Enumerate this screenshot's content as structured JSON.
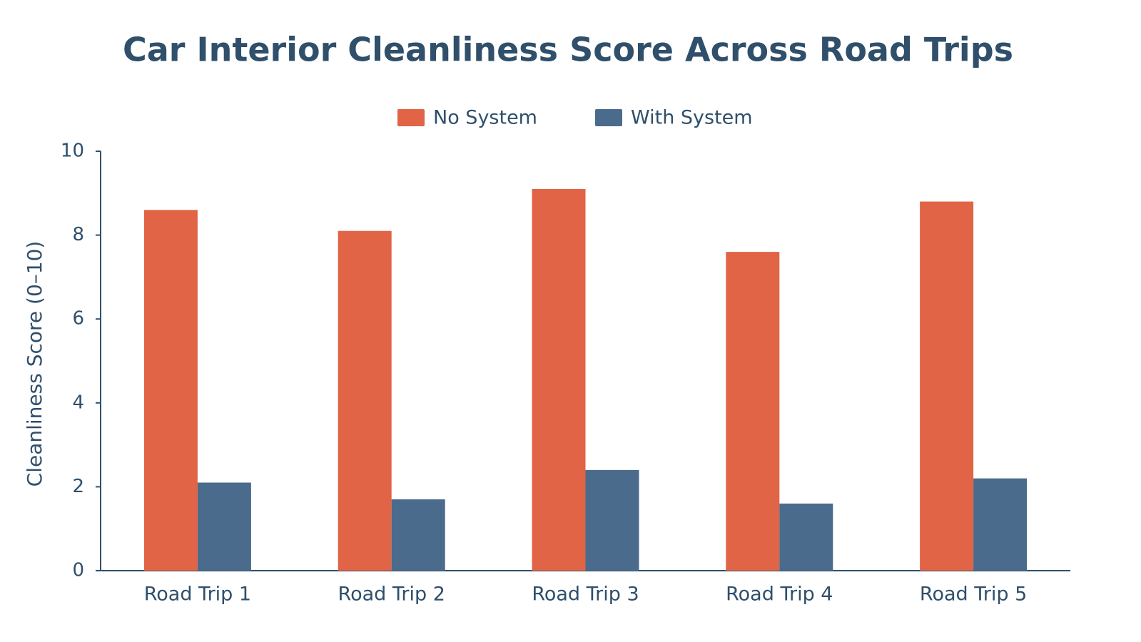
{
  "chart_data": {
    "type": "bar",
    "title": "Car Interior Cleanliness Score Across Road Trips",
    "y_label": "Cleanliness Score (0–10)",
    "categories": [
      "Road Trip 1",
      "Road Trip 2",
      "Road Trip 3",
      "Road Trip 4",
      "Road Trip 5"
    ],
    "series": [
      {
        "name": "No System",
        "color": "#e06445",
        "values": [
          8.6,
          8.1,
          9.1,
          7.6,
          8.8
        ]
      },
      {
        "name": "With System",
        "color": "#4a6b8c",
        "values": [
          2.1,
          1.7,
          2.4,
          1.6,
          2.2
        ]
      }
    ],
    "ylim": [
      0,
      10
    ],
    "yticks": [
      0,
      2,
      4,
      6,
      8,
      10
    ],
    "legend": "top",
    "grid": false
  }
}
